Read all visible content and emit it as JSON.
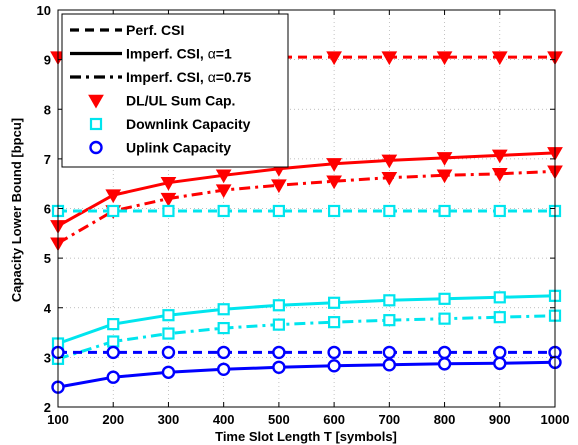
{
  "chart_data": {
    "type": "line",
    "xlabel": "Time Slot Length T   [symbols]",
    "ylabel": "Capacity Lower Bound  [bpcu]",
    "xlim": [
      100,
      1000
    ],
    "ylim": [
      2,
      10
    ],
    "xticks": [
      100,
      200,
      300,
      400,
      500,
      600,
      700,
      800,
      900,
      1000
    ],
    "yticks": [
      2,
      3,
      4,
      5,
      6,
      7,
      8,
      9,
      10
    ],
    "grid": true,
    "legend_position": "top-left",
    "x": [
      100,
      200,
      300,
      400,
      500,
      600,
      700,
      800,
      900,
      1000
    ],
    "legend": [
      {
        "label": "Perf. CSI",
        "style": "dashed",
        "marker": "none"
      },
      {
        "label_main": "Imperf. CSI, ",
        "label_greek": "α",
        "label_tail": "=1",
        "style": "solid",
        "marker": "none"
      },
      {
        "label_main": "Imperf. CSI, ",
        "label_greek": "α",
        "label_tail": "=0.75",
        "style": "dashdot",
        "marker": "none"
      },
      {
        "label": "DL/UL Sum Cap.",
        "style": "none",
        "marker": "triangle-down",
        "color": "#ff0000"
      },
      {
        "label": "Downlink Capacity",
        "style": "none",
        "marker": "square",
        "color": "#00e5ee"
      },
      {
        "label": "Uplink Capacity",
        "style": "none",
        "marker": "circle",
        "color": "#0000ff"
      }
    ],
    "series": [
      {
        "group": "DL/UL Sum Cap.",
        "csi": "Perf. CSI",
        "style": "dashed",
        "marker": "triangle-down",
        "color": "#ff0000",
        "values": [
          9.05,
          9.05,
          9.05,
          9.05,
          9.05,
          9.05,
          9.05,
          9.05,
          9.05,
          9.05
        ]
      },
      {
        "group": "DL/UL Sum Cap.",
        "csi": "Imperf. CSI, alpha=1",
        "style": "solid",
        "marker": "triangle-down",
        "color": "#ff0000",
        "values": [
          5.65,
          6.27,
          6.52,
          6.67,
          6.8,
          6.9,
          6.97,
          7.02,
          7.07,
          7.12
        ]
      },
      {
        "group": "DL/UL Sum Cap.",
        "csi": "Imperf. CSI, alpha=0.75",
        "style": "dashdot",
        "marker": "triangle-down",
        "color": "#ff0000",
        "values": [
          5.3,
          5.95,
          6.2,
          6.37,
          6.47,
          6.55,
          6.62,
          6.67,
          6.7,
          6.75
        ]
      },
      {
        "group": "Downlink Capacity",
        "csi": "Perf. CSI",
        "style": "dashed",
        "marker": "square",
        "color": "#00e5ee",
        "values": [
          5.95,
          5.95,
          5.95,
          5.95,
          5.95,
          5.95,
          5.95,
          5.95,
          5.95,
          5.95
        ]
      },
      {
        "group": "Downlink Capacity",
        "csi": "Imperf. CSI, alpha=1",
        "style": "solid",
        "marker": "square",
        "color": "#00e5ee",
        "values": [
          3.28,
          3.67,
          3.85,
          3.97,
          4.05,
          4.1,
          4.15,
          4.18,
          4.21,
          4.24
        ]
      },
      {
        "group": "Downlink Capacity",
        "csi": "Imperf. CSI, alpha=0.75",
        "style": "dashdot",
        "marker": "square",
        "color": "#00e5ee",
        "values": [
          2.97,
          3.32,
          3.48,
          3.59,
          3.66,
          3.71,
          3.75,
          3.78,
          3.81,
          3.84
        ]
      },
      {
        "group": "Uplink Capacity",
        "csi": "Perf. CSI",
        "style": "dashed",
        "marker": "circle",
        "color": "#0000ff",
        "values": [
          3.1,
          3.1,
          3.1,
          3.1,
          3.1,
          3.1,
          3.1,
          3.1,
          3.1,
          3.1
        ]
      },
      {
        "group": "Uplink Capacity",
        "csi": "Imperf. CSI, alpha=1",
        "style": "solid",
        "marker": "circle",
        "color": "#0000ff",
        "values": [
          2.4,
          2.6,
          2.7,
          2.76,
          2.8,
          2.83,
          2.85,
          2.87,
          2.88,
          2.9
        ]
      }
    ]
  }
}
